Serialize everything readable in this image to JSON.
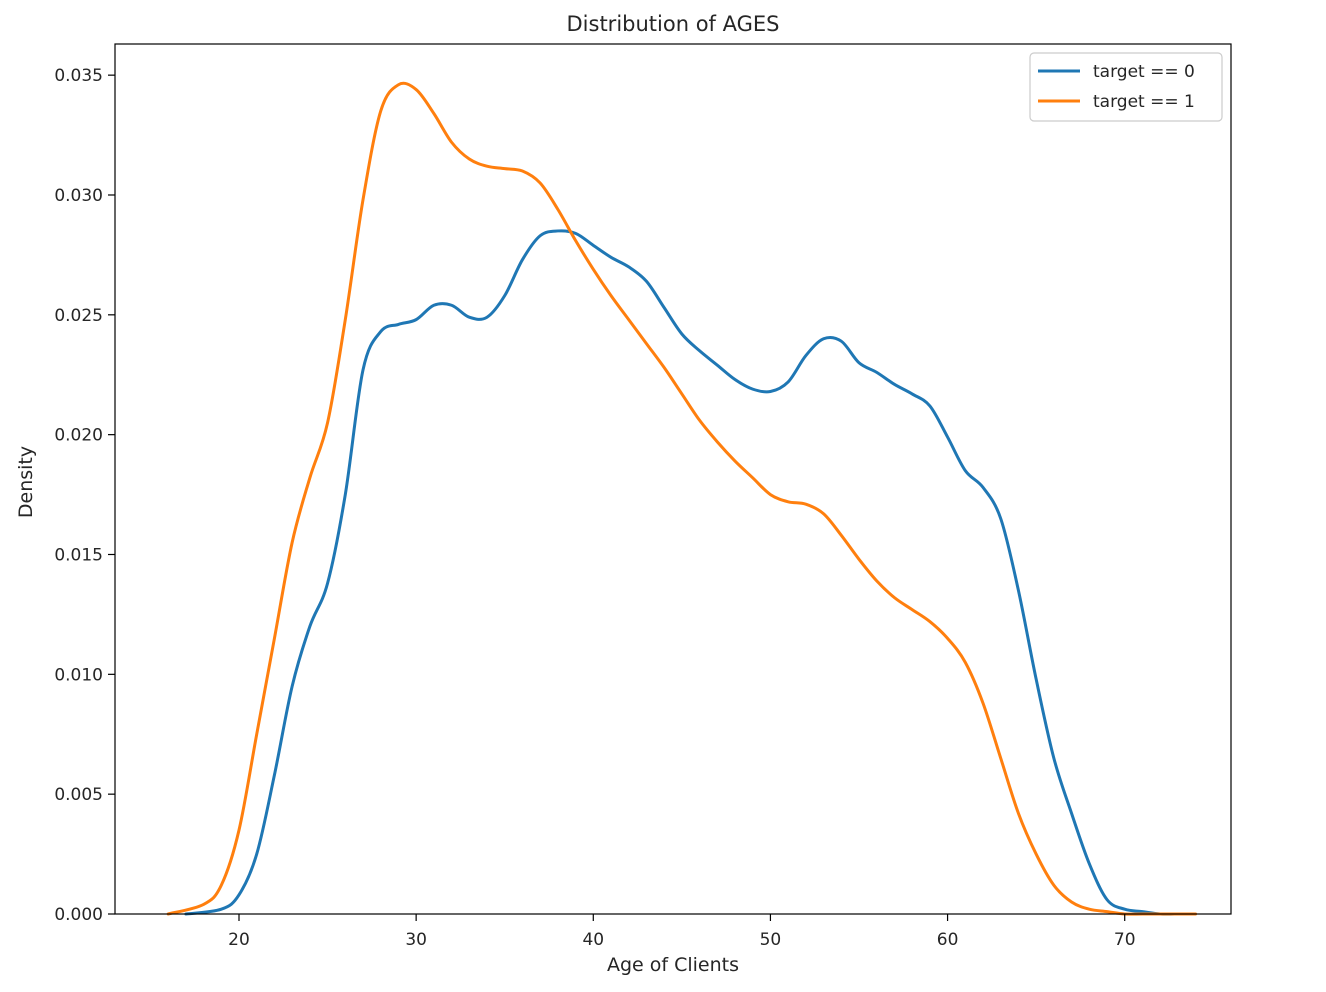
{
  "chart_data": {
    "type": "line",
    "title": "Distribution of AGES",
    "xlabel": "Age of Clients",
    "ylabel": "Density",
    "xlim": [
      13.0,
      76.0
    ],
    "ylim": [
      0.0,
      0.0363
    ],
    "xticks": [
      20,
      30,
      40,
      50,
      60,
      70
    ],
    "xtick_labels": [
      "20",
      "30",
      "40",
      "50",
      "60",
      "70"
    ],
    "yticks": [
      0.0,
      0.005,
      0.01,
      0.015,
      0.02,
      0.025,
      0.03,
      0.035
    ],
    "ytick_labels": [
      "0.000",
      "0.005",
      "0.010",
      "0.015",
      "0.020",
      "0.025",
      "0.030",
      "0.035"
    ],
    "grid": false,
    "legend_position": "top-right",
    "series": [
      {
        "name": "target == 0",
        "color": "#1f77b4",
        "x": [
          17,
          19,
          20,
          21,
          22,
          23,
          24,
          25,
          26,
          27,
          28,
          29,
          30,
          31,
          32,
          33,
          34,
          35,
          36,
          37,
          38,
          39,
          40,
          41,
          42,
          43,
          44,
          45,
          46,
          47,
          48,
          49,
          50,
          51,
          52,
          53,
          54,
          55,
          56,
          57,
          58,
          59,
          60,
          61,
          62,
          63,
          64,
          65,
          66,
          67,
          68,
          69,
          70,
          71,
          72,
          73
        ],
        "y": [
          0.0,
          0.0002,
          0.0008,
          0.0025,
          0.0058,
          0.0095,
          0.012,
          0.0138,
          0.0175,
          0.0227,
          0.0243,
          0.0246,
          0.0248,
          0.0254,
          0.0254,
          0.0249,
          0.0249,
          0.0258,
          0.0273,
          0.0283,
          0.0285,
          0.0284,
          0.0279,
          0.0274,
          0.027,
          0.0264,
          0.0253,
          0.0242,
          0.0235,
          0.0229,
          0.0223,
          0.0219,
          0.0218,
          0.0222,
          0.0233,
          0.024,
          0.0239,
          0.023,
          0.0226,
          0.0221,
          0.0217,
          0.0212,
          0.0199,
          0.0185,
          0.0178,
          0.0165,
          0.0135,
          0.0098,
          0.0065,
          0.0042,
          0.0021,
          0.0006,
          0.0002,
          0.0001,
          0.0,
          0.0
        ]
      },
      {
        "name": "target == 1",
        "color": "#ff7f0e",
        "x": [
          16,
          18,
          19,
          20,
          21,
          22,
          23,
          24,
          25,
          26,
          27,
          28,
          29,
          30,
          31,
          32,
          33,
          34,
          35,
          36,
          37,
          38,
          39,
          40,
          41,
          42,
          43,
          44,
          45,
          46,
          47,
          48,
          49,
          50,
          51,
          52,
          53,
          54,
          55,
          56,
          57,
          58,
          59,
          60,
          61,
          62,
          63,
          64,
          65,
          66,
          67,
          68,
          69,
          70,
          71,
          72,
          73,
          74
        ],
        "y": [
          0.0,
          0.0004,
          0.0012,
          0.0035,
          0.0075,
          0.0115,
          0.0155,
          0.0182,
          0.0205,
          0.0248,
          0.0298,
          0.0335,
          0.0346,
          0.0344,
          0.0334,
          0.0322,
          0.0315,
          0.0312,
          0.0311,
          0.031,
          0.0305,
          0.0294,
          0.0281,
          0.0269,
          0.0258,
          0.0248,
          0.0238,
          0.0228,
          0.0217,
          0.0206,
          0.0197,
          0.0189,
          0.0182,
          0.0175,
          0.0172,
          0.0171,
          0.0167,
          0.0158,
          0.0148,
          0.0139,
          0.0132,
          0.0127,
          0.0122,
          0.0115,
          0.0105,
          0.0088,
          0.0065,
          0.0042,
          0.0025,
          0.0012,
          0.0005,
          0.0002,
          0.0001,
          0.0,
          0.0,
          0.0,
          0.0,
          0.0
        ]
      }
    ]
  }
}
